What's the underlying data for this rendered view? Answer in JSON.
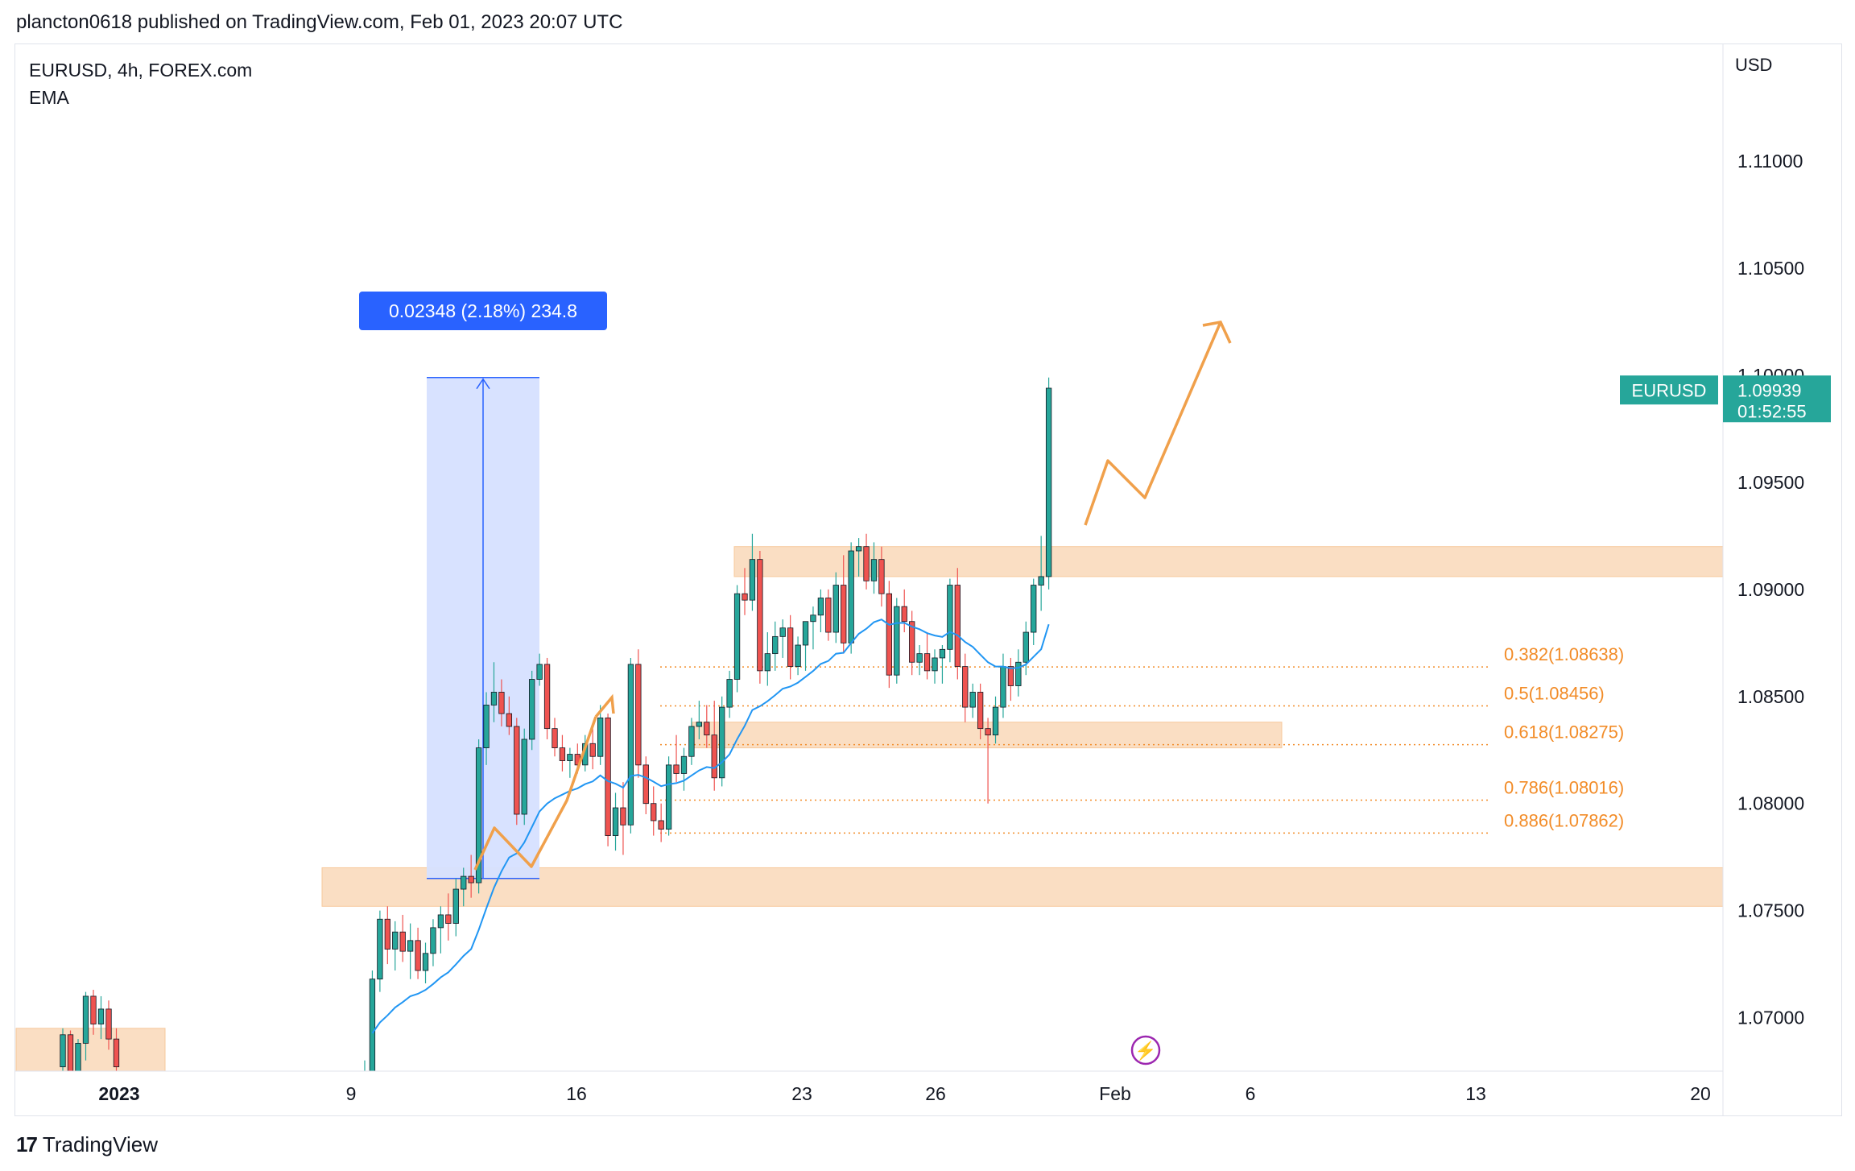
{
  "header": {
    "publish_text": "plancton0618 published on TradingView.com, Feb 01, 2023 20:07 UTC"
  },
  "legend": {
    "symbol_line": "EURUSD, 4h, FOREX.com",
    "indicator": "EMA"
  },
  "price_axis": {
    "currency": "USD"
  },
  "footer": {
    "brand": "TradingView",
    "logo_glyph": "17"
  },
  "last_price": {
    "symbol": "EURUSD",
    "price": "1.09939",
    "countdown": "01:52:55",
    "color": "#26a69a"
  },
  "measure": {
    "label": "0.02348 (2.18%) 234.8",
    "color": "#2962ff"
  },
  "colors": {
    "up": "#26a69a",
    "down": "#ef5350",
    "ema": "#2196f3",
    "zone": "#f7c89b",
    "fib": "#f28c28",
    "projection": "#f0a04b",
    "event": "#9c27b0"
  },
  "chart_data": {
    "type": "candlestick",
    "symbol": "EURUSD",
    "timeframe": "4h",
    "ylim": [
      1.0675,
      1.1155
    ],
    "yticks": [
      1.07,
      1.075,
      1.08,
      1.085,
      1.09,
      1.095,
      1.1,
      1.105,
      1.11
    ],
    "ytick_labels": [
      "1.07000",
      "1.07500",
      "1.08000",
      "1.08500",
      "1.09000",
      "1.09500",
      "1.10000",
      "1.10500",
      "1.11000"
    ],
    "xticks": [
      {
        "label": "2023",
        "bold": true
      },
      {
        "label": "9"
      },
      {
        "label": "16"
      },
      {
        "label": "23"
      },
      {
        "label": "26"
      },
      {
        "label": "Feb"
      },
      {
        "label": "6"
      },
      {
        "label": "13"
      },
      {
        "label": "20"
      }
    ],
    "fib_levels": [
      {
        "label": "0.382(1.08638)",
        "price": 1.08638
      },
      {
        "label": "0.5(1.08456)",
        "price": 1.08456
      },
      {
        "label": "0.618(1.08275)",
        "price": 1.08275
      },
      {
        "label": "0.786(1.08016)",
        "price": 1.08016
      },
      {
        "label": "0.886(1.07862)",
        "price": 1.07862
      }
    ],
    "zones": [
      {
        "price_top": 1.0695,
        "price_bottom": 1.0675
      },
      {
        "price_top": 1.077,
        "price_bottom": 1.0752
      },
      {
        "price_top": 1.0838,
        "price_bottom": 1.0826
      },
      {
        "price_top": 1.092,
        "price_bottom": 1.0906
      }
    ],
    "measurement": {
      "from_price": 1.0765,
      "to_price": 1.0999,
      "change": 0.02348,
      "percent": 2.18,
      "pips": 234.8
    },
    "last_price": 1.09939,
    "candles": [
      [
        1.0677,
        1.0695,
        1.067,
        1.0692
      ],
      [
        1.0692,
        1.0694,
        1.0668,
        1.0673
      ],
      [
        1.0673,
        1.069,
        1.0665,
        1.0688
      ],
      [
        1.0688,
        1.0712,
        1.068,
        1.071
      ],
      [
        1.071,
        1.0713,
        1.0692,
        1.0697
      ],
      [
        1.0697,
        1.071,
        1.069,
        1.0704
      ],
      [
        1.0704,
        1.0708,
        1.0685,
        1.069
      ],
      [
        1.069,
        1.0695,
        1.0672,
        1.0677
      ],
      [
        1.0655,
        1.068,
        1.065,
        1.0675
      ],
      [
        1.0675,
        1.0722,
        1.067,
        1.0718
      ],
      [
        1.0718,
        1.075,
        1.0712,
        1.0746
      ],
      [
        1.0746,
        1.0752,
        1.0725,
        1.0732
      ],
      [
        1.0732,
        1.0745,
        1.0722,
        1.074
      ],
      [
        1.074,
        1.0748,
        1.0726,
        1.0731
      ],
      [
        1.0731,
        1.0744,
        1.0718,
        1.0736
      ],
      [
        1.0736,
        1.0742,
        1.0718,
        1.0722
      ],
      [
        1.0722,
        1.0735,
        1.0716,
        1.073
      ],
      [
        1.073,
        1.0746,
        1.0724,
        1.0742
      ],
      [
        1.0742,
        1.0752,
        1.073,
        1.0748
      ],
      [
        1.0748,
        1.0758,
        1.0736,
        1.0744
      ],
      [
        1.0744,
        1.0765,
        1.0738,
        1.076
      ],
      [
        1.076,
        1.077,
        1.0752,
        1.0766
      ],
      [
        1.0766,
        1.0776,
        1.0756,
        1.0763
      ],
      [
        1.0763,
        1.083,
        1.0758,
        1.0826
      ],
      [
        1.0826,
        1.0852,
        1.0818,
        1.0846
      ],
      [
        1.0846,
        1.0866,
        1.0838,
        1.0852
      ],
      [
        1.0852,
        1.0858,
        1.0836,
        1.0842
      ],
      [
        1.0842,
        1.085,
        1.0832,
        1.0836
      ],
      [
        1.0836,
        1.084,
        1.079,
        1.0795
      ],
      [
        1.0795,
        1.0835,
        1.079,
        1.083
      ],
      [
        1.083,
        1.0862,
        1.0825,
        1.0858
      ],
      [
        1.0858,
        1.087,
        1.0855,
        1.0865
      ],
      [
        1.0865,
        1.0868,
        1.083,
        1.0835
      ],
      [
        1.0835,
        1.084,
        1.0822,
        1.0826
      ],
      [
        1.0826,
        1.0832,
        1.0815,
        1.082
      ],
      [
        1.082,
        1.0826,
        1.0812,
        1.0823
      ],
      [
        1.0823,
        1.0828,
        1.0814,
        1.0818
      ],
      [
        1.0818,
        1.0832,
        1.0815,
        1.0828
      ],
      [
        1.0828,
        1.0835,
        1.0816,
        1.0822
      ],
      [
        1.0822,
        1.0846,
        1.0818,
        1.084
      ],
      [
        1.084,
        1.0842,
        1.078,
        1.0785
      ],
      [
        1.0785,
        1.0805,
        1.0778,
        1.0798
      ],
      [
        1.0798,
        1.081,
        1.0776,
        1.079
      ],
      [
        1.079,
        1.0868,
        1.0786,
        1.0865
      ],
      [
        1.0865,
        1.0872,
        1.0812,
        1.0818
      ],
      [
        1.0818,
        1.0822,
        1.0795,
        1.08
      ],
      [
        1.08,
        1.0808,
        1.0785,
        1.0792
      ],
      [
        1.0792,
        1.08,
        1.0782,
        1.0788
      ],
      [
        1.0788,
        1.0822,
        1.0785,
        1.0818
      ],
      [
        1.0818,
        1.0832,
        1.081,
        1.0814
      ],
      [
        1.0814,
        1.0826,
        1.0806,
        1.0822
      ],
      [
        1.0822,
        1.084,
        1.0818,
        1.0836
      ],
      [
        1.0836,
        1.0848,
        1.083,
        1.0838
      ],
      [
        1.0838,
        1.0846,
        1.0826,
        1.0832
      ],
      [
        1.0832,
        1.0848,
        1.0806,
        1.0812
      ],
      [
        1.0812,
        1.085,
        1.0808,
        1.0845
      ],
      [
        1.0845,
        1.0862,
        1.084,
        1.0858
      ],
      [
        1.0858,
        1.0902,
        1.0852,
        1.0898
      ],
      [
        1.0898,
        1.091,
        1.0888,
        1.0895
      ],
      [
        1.0895,
        1.0926,
        1.089,
        1.0914
      ],
      [
        1.0914,
        1.0918,
        1.0856,
        1.0862
      ],
      [
        1.0862,
        1.088,
        1.0855,
        1.087
      ],
      [
        1.087,
        1.0885,
        1.0862,
        1.0878
      ],
      [
        1.0878,
        1.0886,
        1.0868,
        1.0882
      ],
      [
        1.0882,
        1.0888,
        1.0858,
        1.0864
      ],
      [
        1.0864,
        1.0878,
        1.086,
        1.0874
      ],
      [
        1.0874,
        1.0884,
        1.0862,
        1.0885
      ],
      [
        1.0885,
        1.0892,
        1.0872,
        1.0888
      ],
      [
        1.0888,
        1.09,
        1.088,
        1.0896
      ],
      [
        1.0896,
        1.09,
        1.0876,
        1.088
      ],
      [
        1.088,
        1.0908,
        1.0875,
        1.0902
      ],
      [
        1.0902,
        1.0916,
        1.087,
        1.0875
      ],
      [
        1.0875,
        1.0922,
        1.087,
        1.0918
      ],
      [
        1.0918,
        1.0924,
        1.0906,
        1.092
      ],
      [
        1.092,
        1.0926,
        1.09,
        1.0904
      ],
      [
        1.0904,
        1.0922,
        1.0898,
        1.0914
      ],
      [
        1.0914,
        1.092,
        1.0892,
        1.0898
      ],
      [
        1.0898,
        1.0904,
        1.0854,
        1.086
      ],
      [
        1.086,
        1.0896,
        1.0856,
        1.0892
      ],
      [
        1.0892,
        1.09,
        1.088,
        1.0885
      ],
      [
        1.0885,
        1.089,
        1.086,
        1.0866
      ],
      [
        1.0866,
        1.0874,
        1.086,
        1.087
      ],
      [
        1.087,
        1.088,
        1.0858,
        1.0862
      ],
      [
        1.0862,
        1.0872,
        1.0856,
        1.0868
      ],
      [
        1.0868,
        1.0874,
        1.0856,
        1.0872
      ],
      [
        1.0872,
        1.0905,
        1.0866,
        1.0902
      ],
      [
        1.0902,
        1.091,
        1.0858,
        1.0864
      ],
      [
        1.0864,
        1.087,
        1.0838,
        1.0845
      ],
      [
        1.0845,
        1.0856,
        1.084,
        1.0852
      ],
      [
        1.0852,
        1.0856,
        1.083,
        1.0835
      ],
      [
        1.0835,
        1.084,
        1.08,
        1.0832
      ],
      [
        1.0832,
        1.085,
        1.0828,
        1.0845
      ],
      [
        1.0845,
        1.087,
        1.084,
        1.0864
      ],
      [
        1.0864,
        1.0868,
        1.0848,
        1.0855
      ],
      [
        1.0855,
        1.0872,
        1.085,
        1.0866
      ],
      [
        1.0866,
        1.0885,
        1.086,
        1.088
      ],
      [
        1.088,
        1.0905,
        1.0874,
        1.0902
      ],
      [
        1.0902,
        1.0925,
        1.089,
        1.0906
      ],
      [
        1.0906,
        1.0999,
        1.09,
        1.0994
      ]
    ]
  }
}
